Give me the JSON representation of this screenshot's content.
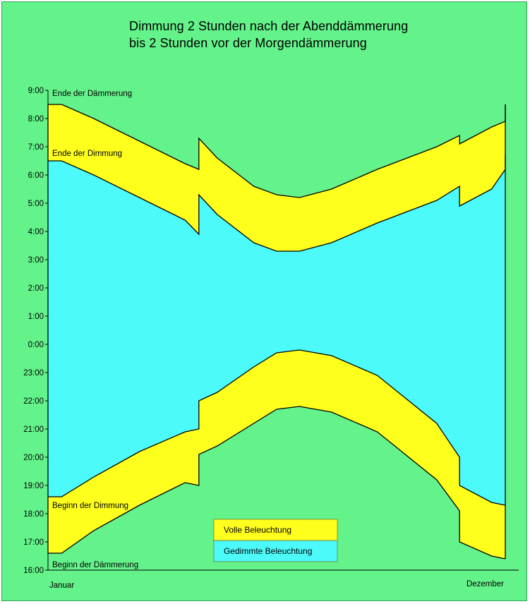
{
  "chart_data": {
    "type": "area",
    "title_lines": [
      "Dimmung 2 Stunden nach der Abenddämmerung",
      "bis 2 Stunden vor der Morgendämmerung"
    ],
    "y_ticks": [
      "9:00",
      "8:00",
      "7:00",
      "6:00",
      "5:00",
      "4:00",
      "3:00",
      "2:00",
      "1:00",
      "0:00",
      "23:00",
      "22:00",
      "21:00",
      "20:00",
      "19:00",
      "18:00",
      "17:00",
      "16:00"
    ],
    "x_labels": [
      "Januar",
      "Dezember"
    ],
    "annotations": {
      "ende_daemmerung": "Ende der Dämmerung",
      "ende_dimmung": "Ende der Dimmung",
      "beginn_dimmung": "Beginn der Dimmung",
      "beginn_daemmerung": "Beginn der Dämmerung"
    },
    "legend": [
      {
        "label": "Volle Beleuchtung",
        "color": "#ffff1e"
      },
      {
        "label": "Gedimmte Beleuchtung",
        "color": "#4dfafa"
      }
    ],
    "x_unit": "fraction of year",
    "y_unit": "hours after 16:00",
    "series": [
      {
        "name": "Ende der Dämmerung",
        "points": [
          [
            0,
            16.5
          ],
          [
            0.03,
            16.5
          ],
          [
            0.1,
            16.0
          ],
          [
            0.2,
            15.2
          ],
          [
            0.3,
            14.4
          ],
          [
            0.33,
            14.2
          ],
          [
            0.33,
            15.3
          ],
          [
            0.37,
            14.6
          ],
          [
            0.45,
            13.6
          ],
          [
            0.5,
            13.3
          ],
          [
            0.55,
            13.2
          ],
          [
            0.62,
            13.5
          ],
          [
            0.72,
            14.2
          ],
          [
            0.85,
            15.0
          ],
          [
            0.9,
            15.4
          ],
          [
            0.9,
            15.1
          ],
          [
            0.97,
            15.7
          ],
          [
            1,
            15.9
          ],
          [
            1,
            16.5
          ]
        ]
      },
      {
        "name": "Ende der Dimmung",
        "points": [
          [
            0,
            14.5
          ],
          [
            0.03,
            14.5
          ],
          [
            0.1,
            14.0
          ],
          [
            0.2,
            13.2
          ],
          [
            0.3,
            12.4
          ],
          [
            0.33,
            11.9
          ],
          [
            0.33,
            13.3
          ],
          [
            0.37,
            12.6
          ],
          [
            0.45,
            11.6
          ],
          [
            0.5,
            11.3
          ],
          [
            0.55,
            11.3
          ],
          [
            0.62,
            11.6
          ],
          [
            0.72,
            12.3
          ],
          [
            0.85,
            13.1
          ],
          [
            0.9,
            13.6
          ],
          [
            0.9,
            12.9
          ],
          [
            0.97,
            13.5
          ],
          [
            1,
            14.2
          ],
          [
            1,
            14.7
          ]
        ]
      },
      {
        "name": "Beginn der Dimmung",
        "points": [
          [
            0,
            2.6
          ],
          [
            0.03,
            2.6
          ],
          [
            0.1,
            3.3
          ],
          [
            0.2,
            4.2
          ],
          [
            0.3,
            4.9
          ],
          [
            0.33,
            5.0
          ],
          [
            0.33,
            6.0
          ],
          [
            0.37,
            6.3
          ],
          [
            0.45,
            7.2
          ],
          [
            0.5,
            7.7
          ],
          [
            0.55,
            7.8
          ],
          [
            0.62,
            7.6
          ],
          [
            0.72,
            6.9
          ],
          [
            0.85,
            5.2
          ],
          [
            0.9,
            4.0
          ],
          [
            0.9,
            3.0
          ],
          [
            0.97,
            2.4
          ],
          [
            1,
            2.3
          ],
          [
            1,
            2.3
          ]
        ]
      },
      {
        "name": "Beginn der Dämmerung",
        "points": [
          [
            0,
            0.6
          ],
          [
            0.03,
            0.6
          ],
          [
            0.1,
            1.4
          ],
          [
            0.2,
            2.3
          ],
          [
            0.3,
            3.1
          ],
          [
            0.33,
            3.0
          ],
          [
            0.33,
            4.1
          ],
          [
            0.37,
            4.4
          ],
          [
            0.45,
            5.2
          ],
          [
            0.5,
            5.7
          ],
          [
            0.55,
            5.8
          ],
          [
            0.62,
            5.6
          ],
          [
            0.72,
            4.9
          ],
          [
            0.85,
            3.2
          ],
          [
            0.9,
            2.1
          ],
          [
            0.9,
            1.0
          ],
          [
            0.97,
            0.5
          ],
          [
            1,
            0.4
          ],
          [
            1,
            0.4
          ]
        ]
      }
    ],
    "ylim": [
      0,
      17
    ],
    "xlim": [
      0,
      1
    ],
    "grid": false
  }
}
